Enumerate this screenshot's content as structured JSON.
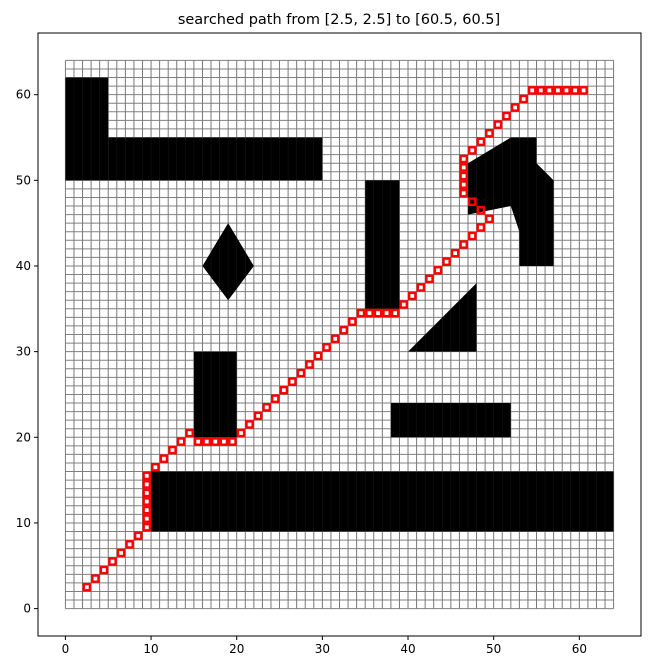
{
  "chart_data": {
    "type": "heatmap",
    "title": "searched path from [2.5, 2.5] to [60.5, 60.5]",
    "xlabel": "",
    "ylabel": "",
    "xlim": [
      -3.2,
      67.2
    ],
    "ylim": [
      -3.2,
      67.2
    ],
    "xticks": [
      0,
      10,
      20,
      30,
      40,
      50,
      60
    ],
    "yticks": [
      0,
      10,
      20,
      30,
      40,
      50,
      60
    ],
    "xtick_labels": [
      "0",
      "10",
      "20",
      "30",
      "40",
      "50",
      "60"
    ],
    "ytick_labels": [
      "0",
      "10",
      "20",
      "30",
      "40",
      "50",
      "60"
    ],
    "grid": {
      "cells_x": 64,
      "cells_y": 64,
      "cell_size": 1
    },
    "start": [
      2.5,
      2.5
    ],
    "goal": [
      60.5,
      60.5
    ],
    "obstacle_rects": [
      [
        0,
        50,
        5,
        62
      ],
      [
        5,
        50,
        30,
        55
      ],
      [
        10,
        9,
        64,
        16
      ],
      [
        15,
        20,
        20,
        30
      ],
      [
        35,
        35,
        39,
        50
      ],
      [
        38,
        20,
        52,
        24
      ]
    ],
    "obstacle_polygons": [
      [
        [
          16,
          40
        ],
        [
          19,
          45
        ],
        [
          22,
          40
        ],
        [
          19,
          36
        ]
      ],
      [
        [
          40,
          30
        ],
        [
          48,
          30
        ],
        [
          48,
          38
        ]
      ],
      [
        [
          47,
          46
        ],
        [
          47,
          52
        ],
        [
          52,
          55
        ],
        [
          55,
          55
        ],
        [
          55,
          52
        ],
        [
          57,
          50
        ],
        [
          57,
          40
        ],
        [
          53,
          40
        ],
        [
          53,
          44
        ],
        [
          52,
          47
        ]
      ]
    ],
    "path": [
      [
        2.5,
        2.5
      ],
      [
        3.5,
        3.5
      ],
      [
        4.5,
        4.5
      ],
      [
        5.5,
        5.5
      ],
      [
        6.5,
        6.5
      ],
      [
        7.5,
        7.5
      ],
      [
        8.5,
        8.5
      ],
      [
        9.5,
        9.5
      ],
      [
        9.5,
        10.5
      ],
      [
        9.5,
        11.5
      ],
      [
        9.5,
        12.5
      ],
      [
        9.5,
        13.5
      ],
      [
        9.5,
        14.5
      ],
      [
        9.5,
        15.5
      ],
      [
        10.5,
        16.5
      ],
      [
        11.5,
        17.5
      ],
      [
        12.5,
        18.5
      ],
      [
        13.5,
        19.5
      ],
      [
        14.5,
        20.5
      ],
      [
        15.5,
        19.5
      ],
      [
        16.5,
        19.5
      ],
      [
        17.5,
        19.5
      ],
      [
        18.5,
        19.5
      ],
      [
        19.5,
        19.5
      ],
      [
        20.5,
        20.5
      ],
      [
        21.5,
        21.5
      ],
      [
        22.5,
        22.5
      ],
      [
        23.5,
        23.5
      ],
      [
        24.5,
        24.5
      ],
      [
        25.5,
        25.5
      ],
      [
        26.5,
        26.5
      ],
      [
        27.5,
        27.5
      ],
      [
        28.5,
        28.5
      ],
      [
        29.5,
        29.5
      ],
      [
        30.5,
        30.5
      ],
      [
        31.5,
        31.5
      ],
      [
        32.5,
        32.5
      ],
      [
        33.5,
        33.5
      ],
      [
        34.5,
        34.5
      ],
      [
        35.5,
        34.5
      ],
      [
        36.5,
        34.5
      ],
      [
        37.5,
        34.5
      ],
      [
        38.5,
        34.5
      ],
      [
        39.5,
        35.5
      ],
      [
        40.5,
        36.5
      ],
      [
        41.5,
        37.5
      ],
      [
        42.5,
        38.5
      ],
      [
        43.5,
        39.5
      ],
      [
        44.5,
        40.5
      ],
      [
        45.5,
        41.5
      ],
      [
        46.5,
        42.5
      ],
      [
        47.5,
        43.5
      ],
      [
        48.5,
        44.5
      ],
      [
        49.5,
        45.5
      ],
      [
        48.5,
        46.5
      ],
      [
        47.5,
        47.5
      ],
      [
        46.5,
        48.5
      ],
      [
        46.5,
        49.5
      ],
      [
        46.5,
        50.5
      ],
      [
        46.5,
        51.5
      ],
      [
        46.5,
        52.5
      ],
      [
        47.5,
        53.5
      ],
      [
        48.5,
        54.5
      ],
      [
        49.5,
        55.5
      ],
      [
        50.5,
        56.5
      ],
      [
        51.5,
        57.5
      ],
      [
        52.5,
        58.5
      ],
      [
        53.5,
        59.5
      ],
      [
        54.5,
        60.5
      ],
      [
        55.5,
        60.5
      ],
      [
        56.5,
        60.5
      ],
      [
        57.5,
        60.5
      ],
      [
        58.5,
        60.5
      ],
      [
        59.5,
        60.5
      ],
      [
        60.5,
        60.5
      ]
    ],
    "colors": {
      "free_cell_edge": "#808080",
      "obstacle": "#000000",
      "path": "#ff0000"
    }
  }
}
